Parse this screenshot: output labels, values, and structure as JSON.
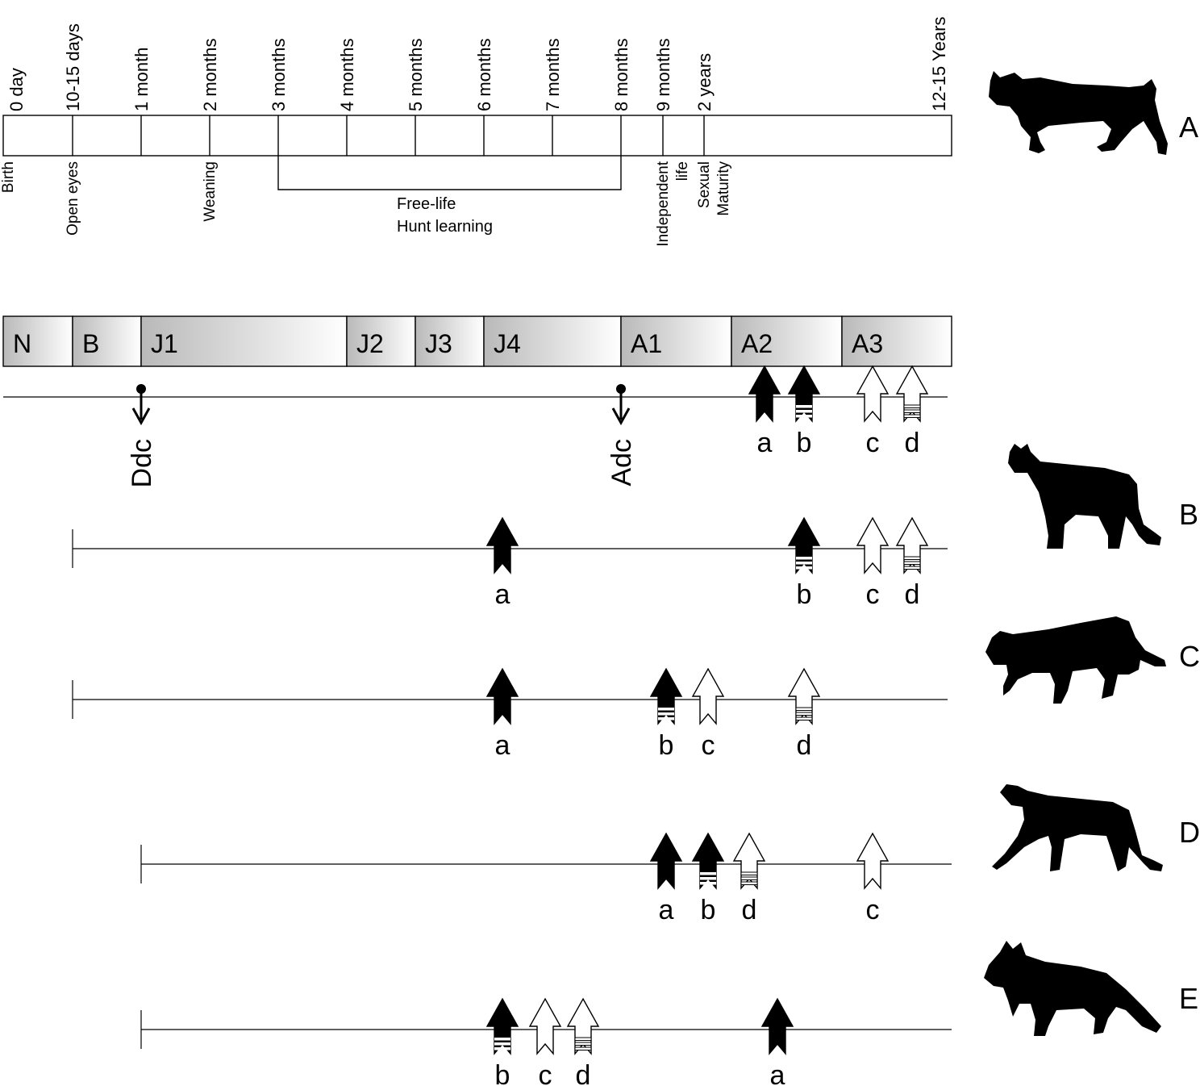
{
  "timeline": {
    "ages": [
      {
        "id": "birth",
        "label": "0 day",
        "event": "Birth"
      },
      {
        "id": "d10",
        "label": "10-15 days",
        "event": "Open eyes"
      },
      {
        "id": "m1",
        "label": "1 month",
        "event": ""
      },
      {
        "id": "m2",
        "label": "2 months",
        "event": "Weaning"
      },
      {
        "id": "m3",
        "label": "3 months",
        "event": ""
      },
      {
        "id": "m4",
        "label": "4 months",
        "event": ""
      },
      {
        "id": "m5",
        "label": "5 months",
        "event": ""
      },
      {
        "id": "m6",
        "label": "6 months",
        "event": ""
      },
      {
        "id": "m7",
        "label": "7 months",
        "event": ""
      },
      {
        "id": "m8",
        "label": "8 months",
        "event": ""
      },
      {
        "id": "m9",
        "label": "9 months",
        "event": "Independent life"
      },
      {
        "id": "y2",
        "label": "2 years",
        "event": "Sexual Maturity"
      },
      {
        "id": "y12",
        "label": "12-15 Years",
        "event": ""
      }
    ],
    "span": {
      "from": "m3",
      "to": "m8",
      "lines": [
        "Free-life",
        "Hunt learning"
      ]
    }
  },
  "stages": [
    "N",
    "B",
    "J1",
    "J2",
    "J3",
    "J4",
    "A1",
    "A2",
    "A3"
  ],
  "panels": [
    {
      "label": "A",
      "silhouette": "lynx-silhouette",
      "start": "birth",
      "markers": [
        {
          "kind": "down-pin",
          "at": "m1",
          "label": "Ddc"
        },
        {
          "kind": "down-pin",
          "at": "m8",
          "label": "Adc"
        },
        {
          "kind": "solid",
          "at": "A2-left",
          "label": "a"
        },
        {
          "kind": "solid-bars",
          "at": "A2-right",
          "label": "b"
        },
        {
          "kind": "open",
          "at": "A3-left",
          "label": "c"
        },
        {
          "kind": "open-bars",
          "at": "A3-right",
          "label": "d"
        }
      ]
    },
    {
      "label": "B",
      "silhouette": "cougar-silhouette",
      "start": "d10",
      "markers": [
        {
          "kind": "solid",
          "at": "J4",
          "label": "a"
        },
        {
          "kind": "solid-bars",
          "at": "A2-right",
          "label": "b"
        },
        {
          "kind": "open",
          "at": "A3-left",
          "label": "c"
        },
        {
          "kind": "open-bars",
          "at": "A3-right",
          "label": "d"
        }
      ]
    },
    {
      "label": "C",
      "silhouette": "ocelot-silhouette",
      "start": "d10",
      "markers": [
        {
          "kind": "solid",
          "at": "J4",
          "label": "a"
        },
        {
          "kind": "solid-bars",
          "at": "A1",
          "label": "b"
        },
        {
          "kind": "open",
          "at": "m9",
          "label": "c"
        },
        {
          "kind": "open-bars",
          "at": "A2-right",
          "label": "d"
        }
      ]
    },
    {
      "label": "D",
      "silhouette": "cheetah-silhouette",
      "start": "m1",
      "markers": [
        {
          "kind": "solid",
          "at": "A1",
          "label": "a"
        },
        {
          "kind": "solid-bars",
          "at": "m9",
          "label": "b"
        },
        {
          "kind": "open-bars",
          "at": "A1-right",
          "label": "d"
        },
        {
          "kind": "open",
          "at": "A3-left",
          "label": "c"
        }
      ]
    },
    {
      "label": "E",
      "silhouette": "fox-silhouette",
      "start": "m1",
      "markers": [
        {
          "kind": "solid-bars",
          "at": "J4",
          "label": "b"
        },
        {
          "kind": "open",
          "at": "J4-mid",
          "label": "c"
        },
        {
          "kind": "open-bars",
          "at": "J4-right",
          "label": "d"
        },
        {
          "kind": "solid",
          "at": "A2-mid",
          "label": "a"
        }
      ]
    }
  ]
}
